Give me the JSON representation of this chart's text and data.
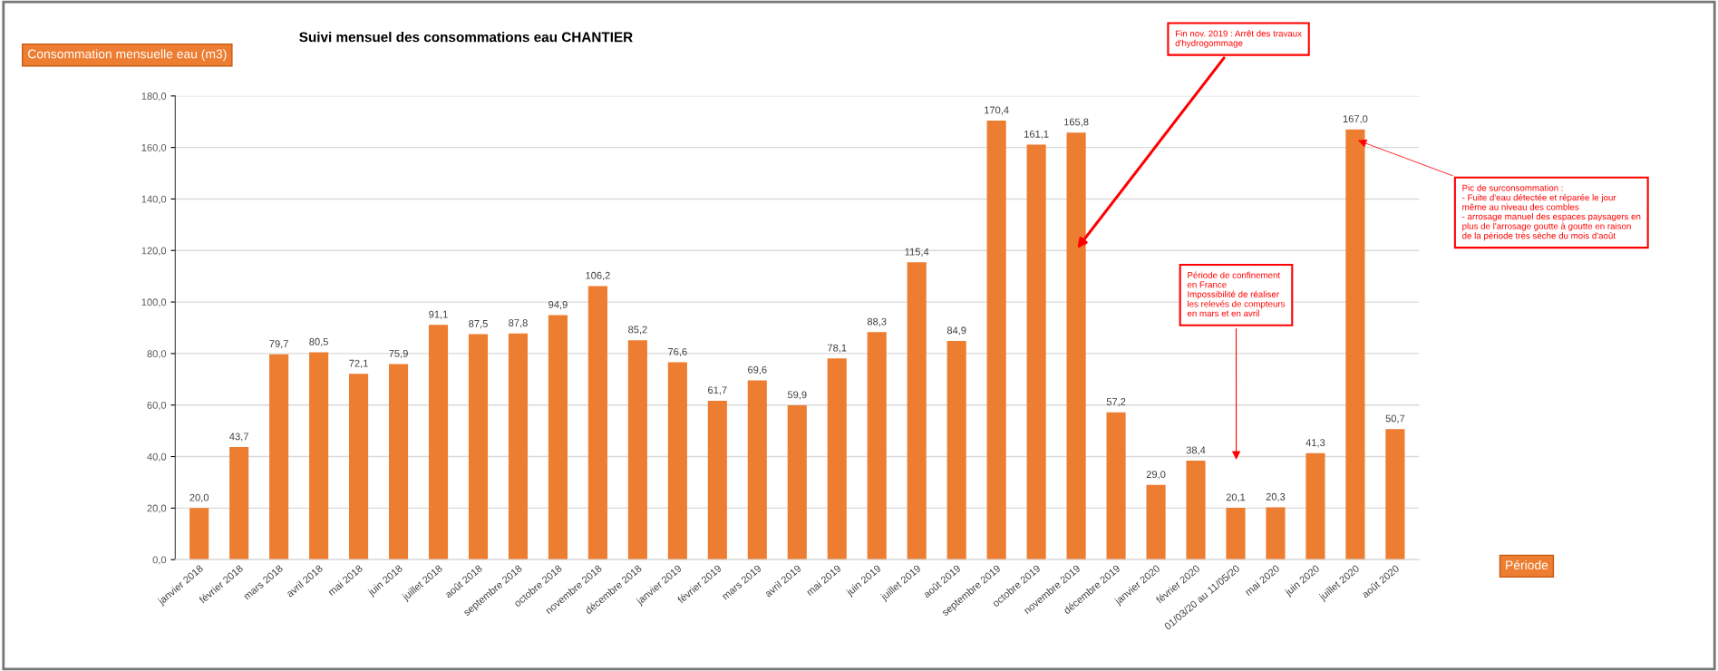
{
  "chart_data": {
    "type": "bar",
    "title": "Suivi mensuel des consommations eau CHANTIER",
    "ylabel": "Consommation mensuelle eau (m3)",
    "categories": [
      "janvier 2018",
      "février 2018",
      "mars 2018",
      "avril 2018",
      "mai 2018",
      "juin 2018",
      "juillet 2018",
      "août 2018",
      "septembre 2018",
      "octobre 2018",
      "novembre 2018",
      "décembre 2018",
      "janvier 2019",
      "février 2019",
      "mars 2019",
      "avril 2019",
      "mai 2019",
      "juin 2019",
      "juillet 2019",
      "août 2019",
      "septembre 2019",
      "octobre 2019",
      "novembre 2019",
      "décembre 2019",
      "janvier 2020",
      "février 2020",
      "01/03/20 au 11/05/20",
      "mai 2020",
      "juin 2020",
      "juillet 2020",
      "août 2020"
    ],
    "values": [
      20.0,
      43.7,
      79.7,
      80.5,
      72.1,
      75.9,
      91.1,
      87.5,
      87.8,
      94.9,
      106.2,
      85.2,
      76.6,
      61.7,
      69.6,
      59.9,
      78.1,
      88.3,
      115.4,
      84.9,
      170.4,
      161.1,
      165.8,
      57.2,
      29.0,
      38.4,
      20.1,
      20.3,
      41.3,
      167.0,
      50.7
    ],
    "value_labels": [
      "20,0",
      "43,7",
      "79,7",
      "80,5",
      "72,1",
      "75,9",
      "91,1",
      "87,5",
      "87,8",
      "94,9",
      "106,2",
      "85,2",
      "76,6",
      "61,7",
      "69,6",
      "59,9",
      "78,1",
      "88,3",
      "115,4",
      "84,9",
      "170,4",
      "161,1",
      "165,8",
      "57,2",
      "29,0",
      "38,4",
      "20,1",
      "20,3",
      "41,3",
      "167,0",
      "50,7"
    ],
    "color": "#ed7d31",
    "ylim": [
      0,
      180
    ],
    "yticks": [
      {
        "value": 0,
        "label": "0,0"
      },
      {
        "value": 20,
        "label": "20,0"
      },
      {
        "value": 40,
        "label": "40,0"
      },
      {
        "value": 60,
        "label": "60,0"
      },
      {
        "value": 80,
        "label": "80,0"
      },
      {
        "value": 100,
        "label": "100,0"
      },
      {
        "value": 120,
        "label": "120,0"
      },
      {
        "value": 140,
        "label": "140,0"
      },
      {
        "value": 160,
        "label": "160,0"
      },
      {
        "value": 180,
        "label": "180,0"
      }
    ],
    "grid": "y",
    "legend": false,
    "annotations": [
      "Fin nov. 2019 : Arrêt des travaux\nd'hydrogommage",
      "Période de confinement\nen France\nImpossibilité de réaliser\nles relevés de compteurs\nen mars et en avril",
      "Pic de surconsommation :\n- Fuite d'eau détectée et réparée le jour\nmême au niveau des combles\n- arrosage manuel des espaces paysagers en\nplus de l'arrosage goutte à goutte en raison\nde la période très sèche du mois d'août",
      "Période"
    ]
  }
}
